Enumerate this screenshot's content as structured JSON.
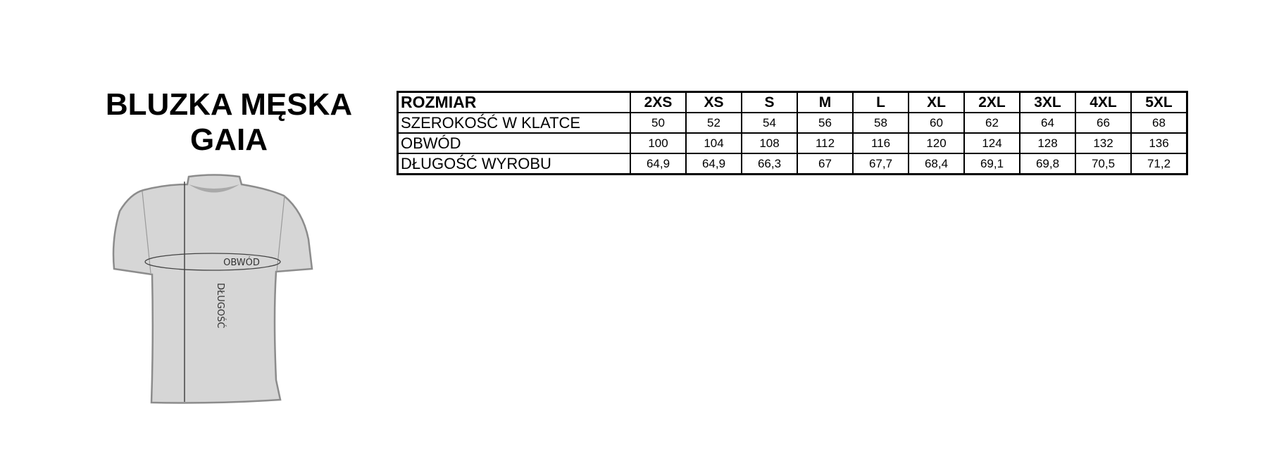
{
  "title": {
    "line1": "BLUZKA MĘSKA",
    "line2": "GAIA"
  },
  "diagram": {
    "circumference_label": "OBWÓD",
    "length_label": "DŁUGOŚĆ",
    "fill_color": "#d6d6d6",
    "outline_color": "#8c8c8c"
  },
  "table": {
    "header": {
      "label": "ROZMIAR",
      "sizes": [
        "2XS",
        "XS",
        "S",
        "M",
        "L",
        "XL",
        "2XL",
        "3XL",
        "4XL",
        "5XL"
      ]
    },
    "rows": [
      {
        "label": "SZEROKOŚĆ W KLATCE",
        "values": [
          "50",
          "52",
          "54",
          "56",
          "58",
          "60",
          "62",
          "64",
          "66",
          "68"
        ]
      },
      {
        "label": "OBWÓD",
        "values": [
          "100",
          "104",
          "108",
          "112",
          "116",
          "120",
          "124",
          "128",
          "132",
          "136"
        ]
      },
      {
        "label": "DŁUGOŚĆ WYROBU",
        "values": [
          "64,9",
          "64,9",
          "66,3",
          "67",
          "67,7",
          "68,4",
          "69,1",
          "69,8",
          "70,5",
          "71,2"
        ]
      }
    ]
  }
}
